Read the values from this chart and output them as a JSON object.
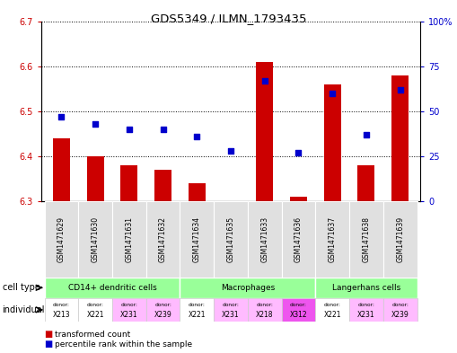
{
  "title": "GDS5349 / ILMN_1793435",
  "samples": [
    "GSM1471629",
    "GSM1471630",
    "GSM1471631",
    "GSM1471632",
    "GSM1471634",
    "GSM1471635",
    "GSM1471633",
    "GSM1471636",
    "GSM1471637",
    "GSM1471638",
    "GSM1471639"
  ],
  "transformed_count": [
    6.44,
    6.4,
    6.38,
    6.37,
    6.34,
    6.3,
    6.61,
    6.31,
    6.56,
    6.38,
    6.58
  ],
  "percentile_rank": [
    47,
    43,
    40,
    40,
    36,
    28,
    67,
    27,
    60,
    37,
    62
  ],
  "ylim_left": [
    6.3,
    6.7
  ],
  "ylim_right": [
    0,
    100
  ],
  "yticks_left": [
    6.3,
    6.4,
    6.5,
    6.6,
    6.7
  ],
  "yticks_right": [
    0,
    25,
    50,
    75,
    100
  ],
  "ytick_labels_right": [
    "0",
    "25",
    "50",
    "75",
    "100%"
  ],
  "bar_color": "#cc0000",
  "dot_color": "#0000cc",
  "grid_color": "#000000",
  "background_color": "#ffffff",
  "tick_label_color_left": "#cc0000",
  "tick_label_color_right": "#0000cc",
  "cell_type_groups": [
    {
      "label": "CD14+ dendritic cells",
      "start": 0,
      "end": 3
    },
    {
      "label": "Macrophages",
      "start": 4,
      "end": 7
    },
    {
      "label": "Langerhans cells",
      "start": 8,
      "end": 10
    }
  ],
  "cell_type_color": "#99ff99",
  "individuals": [
    {
      "donor": "X213",
      "color": "#ffffff"
    },
    {
      "donor": "X221",
      "color": "#ffffff"
    },
    {
      "donor": "X231",
      "color": "#ffbbff"
    },
    {
      "donor": "X239",
      "color": "#ffbbff"
    },
    {
      "donor": "X221",
      "color": "#ffffff"
    },
    {
      "donor": "X231",
      "color": "#ffbbff"
    },
    {
      "donor": "X218",
      "color": "#ffbbff"
    },
    {
      "donor": "X312",
      "color": "#ee55ee"
    },
    {
      "donor": "X221",
      "color": "#ffffff"
    },
    {
      "donor": "X231",
      "color": "#ffbbff"
    },
    {
      "donor": "X239",
      "color": "#ffbbff"
    }
  ],
  "sample_bg_color": "#e0e0e0",
  "sample_border_color": "#ffffff"
}
